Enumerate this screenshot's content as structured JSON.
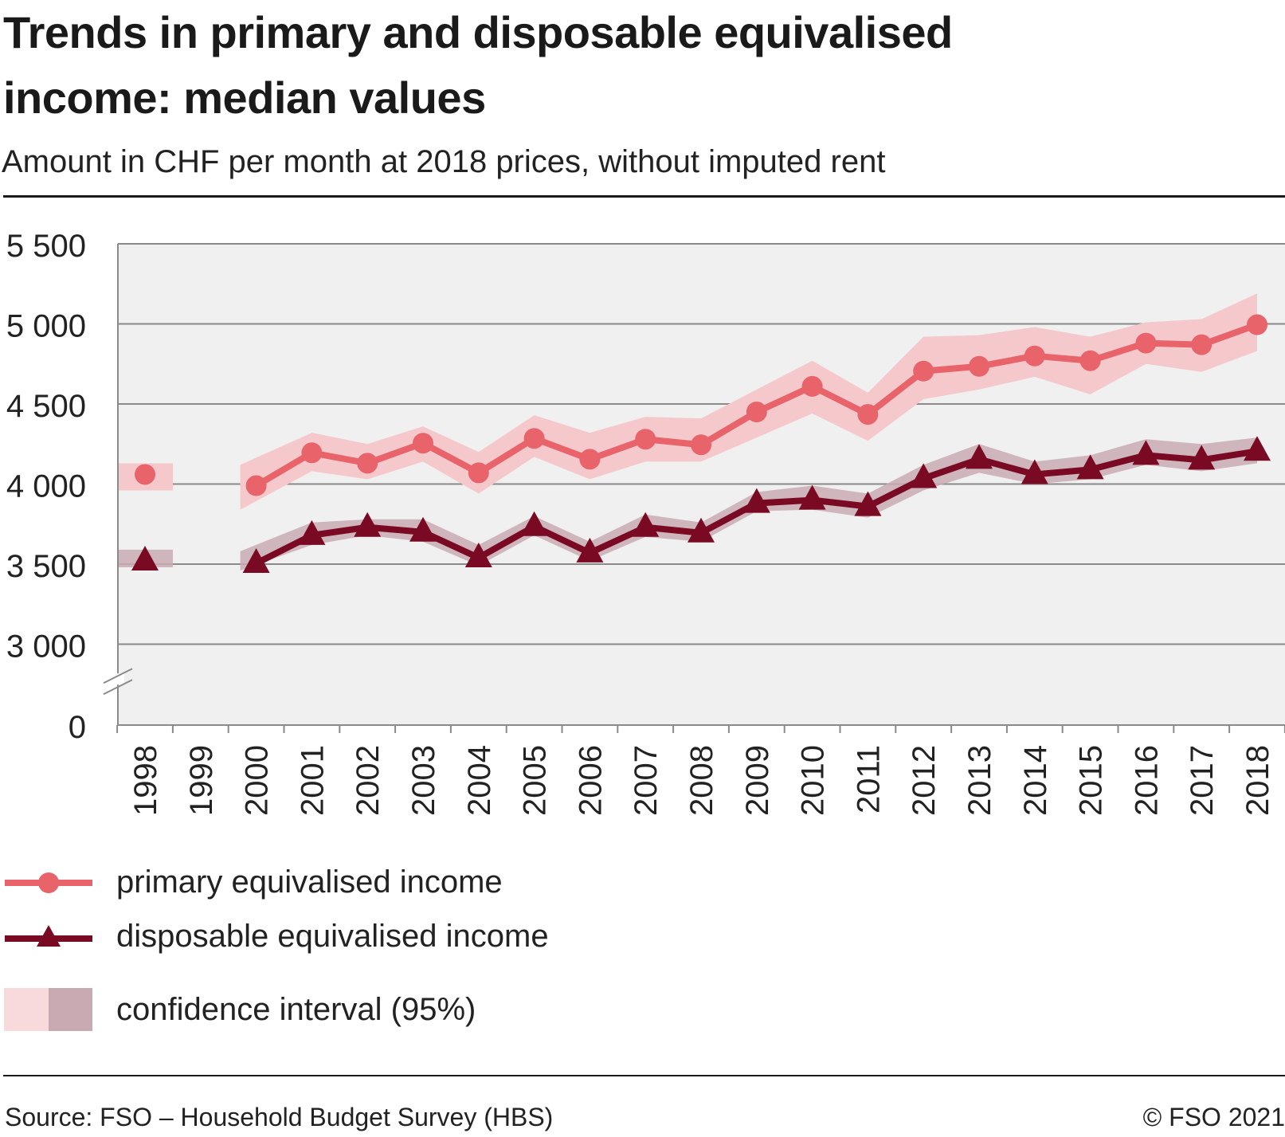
{
  "header": {
    "title": "Trends in primary and disposable equivalised income: median values",
    "subtitle": "Amount in CHF per month at 2018 prices, without imputed rent"
  },
  "footer": {
    "source": "Source: FSO – Household Budget Survey (HBS)",
    "copyright": "© FSO 2021"
  },
  "colors": {
    "primary": "#e8636a",
    "primary_ci": "#f5c9cc",
    "disposable": "#7a0a24",
    "disposable_ci": "#c9aab3",
    "plot_bg": "#f0f0f0",
    "grid": "#8a8a8a"
  },
  "legend": {
    "primary_label": "primary equivalised income",
    "disposable_label": "disposable equivalised income",
    "ci_label": "confidence interval (95%)"
  },
  "chart_data": {
    "type": "line",
    "title": "Trends in primary and disposable equivalised income: median values",
    "subtitle": "Amount in CHF per month at 2018 prices, without imputed rent",
    "ylim": [
      0,
      5500
    ],
    "axis_break": [
      0,
      3000
    ],
    "yticks": [
      0,
      3000,
      3500,
      4000,
      4500,
      5000,
      5500
    ],
    "ytick_labels": [
      "0",
      "3 000",
      "3 500",
      "4 000",
      "4 500",
      "5 000",
      "5 500"
    ],
    "grid": true,
    "legend_position": "bottom",
    "categories": [
      "1998",
      "1999",
      "2000",
      "2001",
      "2002",
      "2003",
      "2004",
      "2005",
      "2006",
      "2007",
      "2008",
      "2009",
      "2010",
      "2011",
      "2012",
      "2013",
      "2014",
      "2015",
      "2016",
      "2017",
      "2018"
    ],
    "series": [
      {
        "name": "primary equivalised income",
        "marker": "circle",
        "values": [
          4060,
          null,
          3990,
          4195,
          4130,
          4255,
          4070,
          4285,
          4155,
          4280,
          4245,
          4450,
          4610,
          4435,
          4705,
          4735,
          4800,
          4770,
          4880,
          4870,
          4995
        ],
        "ci_lower": [
          3960,
          null,
          3840,
          4080,
          4030,
          4140,
          3940,
          4170,
          4030,
          4140,
          4140,
          4290,
          4440,
          4270,
          4530,
          4590,
          4670,
          4560,
          4750,
          4700,
          4830
        ],
        "ci_upper": [
          4130,
          null,
          4120,
          4320,
          4250,
          4360,
          4200,
          4430,
          4320,
          4420,
          4410,
          4590,
          4770,
          4570,
          4920,
          4930,
          4980,
          4920,
          5010,
          5030,
          5190
        ]
      },
      {
        "name": "disposable equivalised income",
        "marker": "triangle",
        "values": [
          3520,
          null,
          3505,
          3680,
          3730,
          3700,
          3540,
          3735,
          3570,
          3730,
          3695,
          3880,
          3900,
          3860,
          4035,
          4155,
          4060,
          4090,
          4180,
          4150,
          4205
        ],
        "ci_lower": [
          3480,
          null,
          3460,
          3620,
          3680,
          3640,
          3490,
          3680,
          3520,
          3670,
          3640,
          3830,
          3840,
          3790,
          3960,
          4070,
          4000,
          4030,
          4120,
          4080,
          4130
        ],
        "ci_upper": [
          3590,
          null,
          3580,
          3760,
          3780,
          3780,
          3620,
          3800,
          3640,
          3810,
          3760,
          3950,
          3990,
          3940,
          4120,
          4250,
          4140,
          4180,
          4280,
          4250,
          4290
        ]
      }
    ]
  }
}
